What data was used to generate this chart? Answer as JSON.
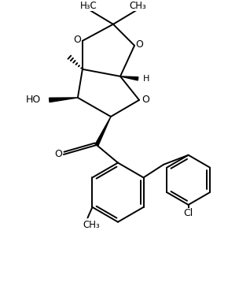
{
  "bg_color": "#ffffff",
  "line_color": "#000000",
  "line_width": 1.4,
  "font_size": 9,
  "fig_width": 3.18,
  "fig_height": 3.68,
  "dpi": 100,
  "xlim": [
    0,
    10
  ],
  "ylim": [
    0,
    12
  ]
}
